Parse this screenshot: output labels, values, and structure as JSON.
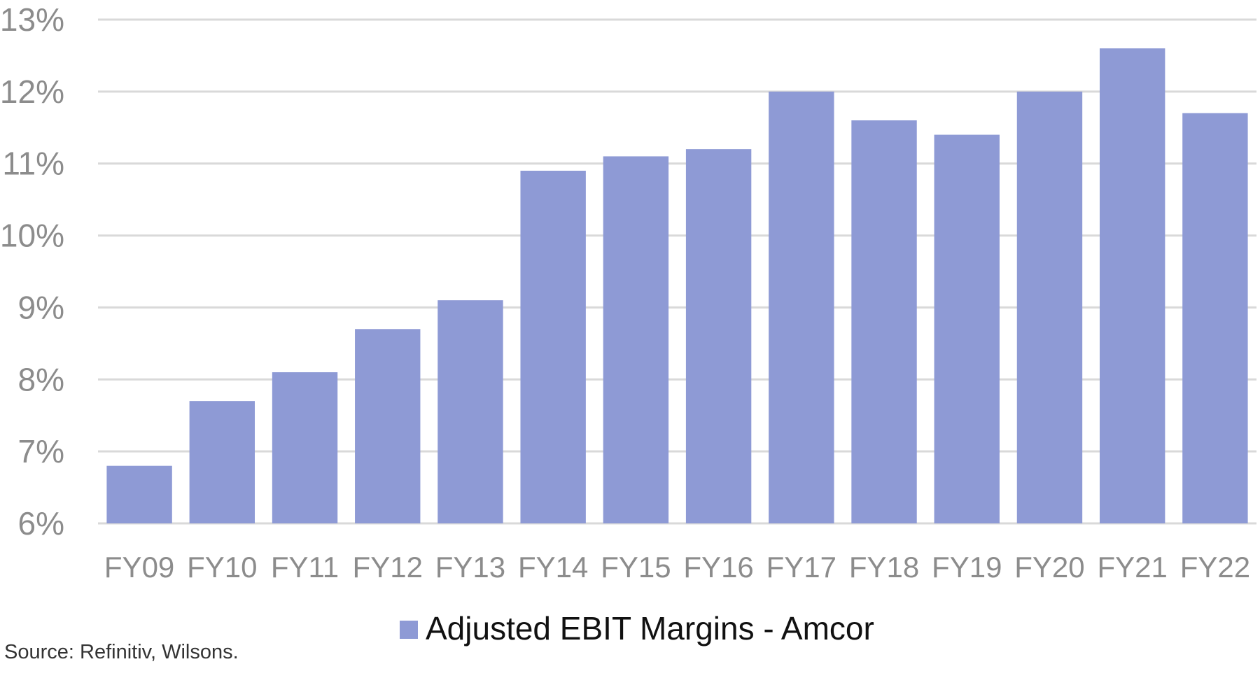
{
  "chart_data": {
    "type": "bar",
    "categories": [
      "FY09",
      "FY10",
      "FY11",
      "FY12",
      "FY13",
      "FY14",
      "FY15",
      "FY16",
      "FY17",
      "FY18",
      "FY19",
      "FY20",
      "FY21",
      "FY22"
    ],
    "series": [
      {
        "name": "Adjusted EBIT Margins - Amcor",
        "values": [
          6.8,
          7.7,
          8.1,
          8.7,
          9.1,
          10.9,
          11.1,
          11.2,
          12.0,
          11.6,
          11.4,
          12.0,
          12.6,
          11.7
        ]
      }
    ],
    "ylim": [
      6,
      13
    ],
    "y_ticks": [
      "6%",
      "7%",
      "8%",
      "9%",
      "10%",
      "11%",
      "12%",
      "13%"
    ],
    "grid": true,
    "legend_placement": "bottom"
  },
  "colors": {
    "bar": "#8e9ad5",
    "grid": "#d9d9d9",
    "tick_text": "#8c8c8c"
  },
  "source_note": "Source: Refinitiv, Wilsons."
}
